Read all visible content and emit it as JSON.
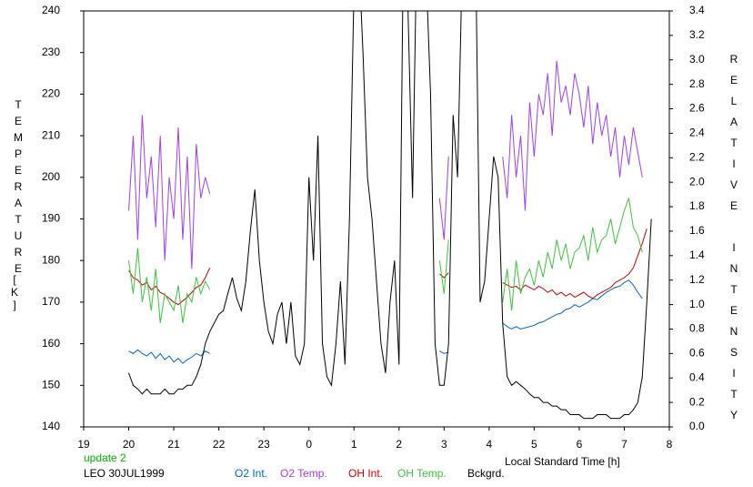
{
  "chart_data": {
    "type": "line",
    "xlabel": "Local Standard Time [h]",
    "ylabel": "TEMPERATURE",
    "ylabel_unit": "[K]",
    "y2label": "RELATIVE INTENSITY",
    "annotations": [
      "update 2",
      "LEO 30JUL1999"
    ],
    "annotation_colors": [
      "#00b000",
      "#000000"
    ],
    "xlim": [
      19,
      32
    ],
    "xticks": [
      19,
      20,
      21,
      22,
      23,
      {
        "value": 24,
        "label": "0"
      },
      {
        "value": 25,
        "label": "1"
      },
      {
        "value": 26,
        "label": "2"
      },
      {
        "value": 27,
        "label": "3"
      },
      {
        "value": 28,
        "label": "4"
      },
      {
        "value": 29,
        "label": "5"
      },
      {
        "value": 30,
        "label": "6"
      },
      {
        "value": 31,
        "label": "7"
      },
      {
        "value": 32,
        "label": "8"
      }
    ],
    "ylim": [
      140,
      240
    ],
    "yticks": [
      140,
      150,
      160,
      170,
      180,
      190,
      200,
      210,
      220,
      230,
      240
    ],
    "y2lim": [
      0,
      3.4
    ],
    "y2ticks": [
      {
        "value": 0,
        "label": "0.0"
      },
      0.2,
      0.4,
      0.6,
      0.8,
      {
        "value": 1,
        "label": "1.0"
      },
      1.2,
      1.4,
      1.6,
      1.8,
      {
        "value": 2,
        "label": "2.0"
      },
      2.2,
      2.4,
      2.6,
      2.8,
      {
        "value": 3,
        "label": "3.0"
      },
      3.2,
      3.4
    ],
    "x": [
      20,
      20.1,
      20.2,
      20.3,
      20.4,
      20.5,
      20.6,
      20.7,
      20.8,
      20.9,
      21,
      21.1,
      21.2,
      21.3,
      21.4,
      21.5,
      21.6,
      21.7,
      21.8,
      21.9,
      22,
      22.1,
      22.2,
      22.3,
      22.4,
      22.5,
      22.6,
      22.7,
      22.8,
      22.9,
      23,
      23.1,
      23.2,
      23.3,
      23.4,
      23.5,
      23.6,
      23.7,
      23.8,
      23.9,
      24,
      24.1,
      24.2,
      24.3,
      24.4,
      24.5,
      24.6,
      24.7,
      24.8,
      24.9,
      25,
      25.1,
      25.2,
      25.3,
      25.4,
      25.5,
      25.6,
      25.7,
      25.8,
      25.9,
      26,
      26.1,
      26.2,
      26.3,
      26.4,
      26.5,
      26.6,
      26.7,
      26.8,
      26.9,
      27,
      27.1,
      27.2,
      27.3,
      27.4,
      27.5,
      27.6,
      27.7,
      27.8,
      27.9,
      28,
      28.1,
      28.2,
      28.3,
      28.4,
      28.5,
      28.6,
      28.7,
      28.8,
      28.9,
      29,
      29.1,
      29.2,
      29.3,
      29.4,
      29.5,
      29.6,
      29.7,
      29.8,
      29.9,
      30,
      30.1,
      30.2,
      30.3,
      30.4,
      30.5,
      30.6,
      30.7,
      30.8,
      30.9,
      31,
      31.1,
      31.2,
      31.3,
      31.4,
      31.5,
      31.6
    ],
    "series": [
      {
        "name": "O2 Int.",
        "color": "#0066cc",
        "axis": "y2",
        "values": [
          0.62,
          0.6,
          0.63,
          0.6,
          0.58,
          0.61,
          0.56,
          0.6,
          0.55,
          0.58,
          0.53,
          0.56,
          0.52,
          0.55,
          0.57,
          0.6,
          0.58,
          0.62,
          0.6,
          null,
          null,
          null,
          null,
          null,
          null,
          null,
          null,
          null,
          null,
          null,
          null,
          null,
          null,
          null,
          null,
          null,
          null,
          null,
          null,
          null,
          null,
          null,
          null,
          null,
          null,
          null,
          null,
          null,
          null,
          null,
          null,
          null,
          null,
          null,
          null,
          null,
          null,
          null,
          null,
          null,
          null,
          null,
          null,
          null,
          null,
          null,
          null,
          null,
          null,
          0.62,
          0.6,
          0.61,
          null,
          null,
          null,
          null,
          null,
          null,
          null,
          null,
          null,
          null,
          null,
          0.85,
          0.82,
          0.8,
          0.82,
          0.8,
          0.81,
          0.82,
          0.83,
          0.85,
          0.86,
          0.88,
          0.9,
          0.92,
          0.93,
          0.96,
          0.97,
          1.0,
          0.98,
          1.0,
          1.02,
          1.05,
          1.04,
          1.07,
          1.1,
          1.12,
          1.14,
          1.15,
          1.18,
          1.2,
          1.16,
          1.1,
          1.05,
          null,
          null
        ]
      },
      {
        "name": "O2 Temp.",
        "color": "#a040e0",
        "values": [
          192,
          210,
          185,
          215,
          195,
          205,
          188,
          210,
          180,
          200,
          190,
          212,
          185,
          205,
          178,
          208,
          195,
          200,
          196,
          null,
          null,
          null,
          null,
          null,
          null,
          null,
          null,
          null,
          null,
          null,
          null,
          null,
          null,
          null,
          null,
          null,
          null,
          null,
          null,
          null,
          null,
          null,
          null,
          null,
          null,
          null,
          null,
          null,
          null,
          null,
          null,
          null,
          null,
          null,
          null,
          null,
          null,
          null,
          null,
          null,
          null,
          null,
          null,
          null,
          null,
          null,
          null,
          null,
          null,
          195,
          185,
          205,
          null,
          null,
          null,
          null,
          null,
          null,
          null,
          null,
          null,
          null,
          null,
          205,
          195,
          215,
          200,
          210,
          192,
          218,
          205,
          220,
          215,
          225,
          210,
          228,
          218,
          222,
          215,
          225,
          220,
          212,
          222,
          208,
          218,
          210,
          215,
          205,
          212,
          200,
          210,
          203,
          212,
          206,
          200,
          null,
          null
        ]
      },
      {
        "name": "OH Int.",
        "color": "#cc0000",
        "axis": "y2",
        "values": [
          1.28,
          1.22,
          1.2,
          1.16,
          1.18,
          1.12,
          1.15,
          1.1,
          1.08,
          1.05,
          1.02,
          1.0,
          1.03,
          1.06,
          1.1,
          1.14,
          1.16,
          1.22,
          1.3,
          null,
          null,
          null,
          null,
          null,
          null,
          null,
          null,
          null,
          null,
          null,
          null,
          null,
          null,
          null,
          null,
          null,
          null,
          null,
          null,
          null,
          null,
          null,
          null,
          null,
          null,
          null,
          null,
          null,
          null,
          null,
          null,
          null,
          null,
          null,
          null,
          null,
          null,
          null,
          null,
          null,
          null,
          null,
          null,
          null,
          null,
          null,
          null,
          null,
          null,
          1.25,
          1.22,
          1.26,
          null,
          null,
          null,
          null,
          null,
          null,
          null,
          null,
          null,
          null,
          null,
          1.18,
          1.16,
          1.14,
          1.15,
          1.12,
          1.16,
          1.14,
          1.12,
          1.15,
          1.13,
          1.1,
          1.12,
          1.08,
          1.1,
          1.07,
          1.09,
          1.06,
          1.08,
          1.1,
          1.07,
          1.05,
          1.08,
          1.1,
          1.12,
          1.14,
          1.18,
          1.2,
          1.22,
          1.25,
          1.3,
          1.4,
          1.5,
          1.62,
          null
        ]
      },
      {
        "name": "OH Temp.",
        "color": "#40c040",
        "values": [
          180,
          172,
          183,
          170,
          176,
          168,
          178,
          165,
          172,
          170,
          168,
          174,
          165,
          172,
          170,
          176,
          172,
          175,
          173,
          null,
          null,
          null,
          null,
          null,
          null,
          null,
          null,
          null,
          null,
          null,
          null,
          null,
          null,
          null,
          null,
          null,
          null,
          null,
          null,
          null,
          null,
          null,
          null,
          null,
          null,
          null,
          null,
          null,
          null,
          null,
          null,
          null,
          null,
          null,
          null,
          null,
          null,
          null,
          null,
          null,
          null,
          null,
          null,
          null,
          null,
          null,
          null,
          null,
          null,
          180,
          172,
          185,
          null,
          null,
          null,
          null,
          null,
          null,
          null,
          null,
          null,
          null,
          null,
          170,
          178,
          168,
          180,
          172,
          176,
          178,
          174,
          180,
          176,
          182,
          178,
          185,
          180,
          184,
          178,
          182,
          183,
          186,
          180,
          188,
          182,
          185,
          186,
          190,
          184,
          188,
          192,
          195,
          188,
          186,
          182,
          null,
          null
        ]
      },
      {
        "name": "Bckgrd.",
        "color": "#000000",
        "axis": "y2",
        "values": [
          0.44,
          0.34,
          0.31,
          0.27,
          0.31,
          0.27,
          0.27,
          0.27,
          0.31,
          0.27,
          0.27,
          0.31,
          0.31,
          0.34,
          0.34,
          0.41,
          0.51,
          0.68,
          0.78,
          0.85,
          0.92,
          0.95,
          1.09,
          1.22,
          1.05,
          0.95,
          1.19,
          1.6,
          1.94,
          1.36,
          1.02,
          0.78,
          0.68,
          0.92,
          1.02,
          0.68,
          1.02,
          0.58,
          0.51,
          0.68,
          2.04,
          1.36,
          2.38,
          0.68,
          0.41,
          0.34,
          0.68,
          1.19,
          0.51,
          1.7,
          3.57,
          3.91,
          3.06,
          2.04,
          1.7,
          1.19,
          0.68,
          0.44,
          1.02,
          1.36,
          0.51,
          4.08,
          3.4,
          1.87,
          4.08,
          3.4,
          3.74,
          2.72,
          0.68,
          0.34,
          0.34,
          0.68,
          2.55,
          2.04,
          3.74,
          3.4,
          3.74,
          3.91,
          1.02,
          1.19,
          1.7,
          2.21,
          2.04,
          0.85,
          0.41,
          0.34,
          0.37,
          0.34,
          0.31,
          0.27,
          0.24,
          0.24,
          0.2,
          0.2,
          0.17,
          0.17,
          0.14,
          0.14,
          0.1,
          0.1,
          0.1,
          0.07,
          0.07,
          0.07,
          0.1,
          0.1,
          0.1,
          0.07,
          0.07,
          0.07,
          0.1,
          0.1,
          0.14,
          0.2,
          0.41,
          1.02,
          1.7
        ]
      }
    ]
  }
}
